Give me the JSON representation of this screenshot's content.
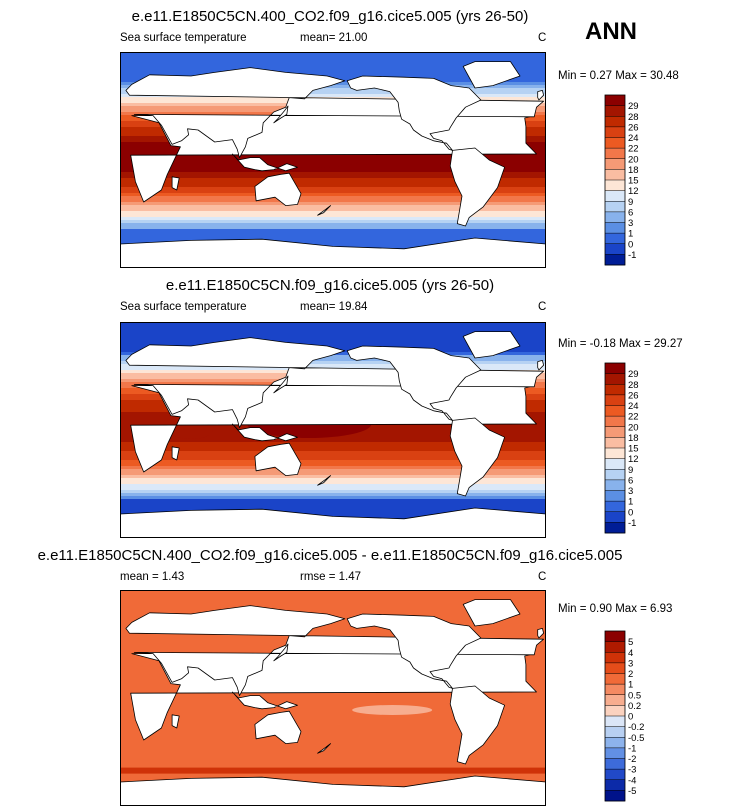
{
  "season_label": "ANN",
  "chart_data": [
    {
      "type": "heatmap",
      "title": "e.e11.E1850C5CN.400_CO2.f09_g16.cice5.005 (yrs 26-50)",
      "left_label": "Sea surface temperature",
      "stat_label": "mean= 21.00",
      "units": "C",
      "minmax_label": "Min =  0.27 Max = 30.48",
      "colorbar_levels": [
        "29",
        "28",
        "26",
        "24",
        "22",
        "20",
        "18",
        "15",
        "12",
        "9",
        "6",
        "3",
        "1",
        "0",
        "-1"
      ],
      "colorbar_colors": [
        "#8b0000",
        "#a31500",
        "#c02a00",
        "#d94112",
        "#ec5a22",
        "#f2774a",
        "#f59a76",
        "#fabda2",
        "#fde6d6",
        "#dae8f8",
        "#b6d2f3",
        "#88b2ec",
        "#5b8fe4",
        "#3366dd",
        "#1a44c8",
        "#001d96"
      ],
      "field": "warm"
    },
    {
      "type": "heatmap",
      "title": "e.e11.E1850C5CN.f09_g16.cice5.005 (yrs 26-50)",
      "left_label": "Sea surface temperature",
      "stat_label": "mean= 19.84",
      "units": "C",
      "minmax_label": "Min = -0.18 Max = 29.27",
      "colorbar_levels": [
        "29",
        "28",
        "26",
        "24",
        "22",
        "20",
        "18",
        "15",
        "12",
        "9",
        "6",
        "3",
        "1",
        "0",
        "-1"
      ],
      "colorbar_colors": [
        "#8b0000",
        "#a31500",
        "#c02a00",
        "#d94112",
        "#ec5a22",
        "#f2774a",
        "#f59a76",
        "#fabda2",
        "#fde6d6",
        "#dae8f8",
        "#b6d2f3",
        "#88b2ec",
        "#5b8fe4",
        "#3366dd",
        "#1a44c8",
        "#001d96"
      ],
      "field": "control"
    },
    {
      "type": "heatmap",
      "title": "e.e11.E1850C5CN.400_CO2.f09_g16.cice5.005 - e.e11.E1850C5CN.f09_g16.cice5.005",
      "left_label": "mean =  1.43",
      "stat_label": "rmse =  1.47",
      "units": "C",
      "minmax_label": "Min =  0.90 Max =  6.93",
      "colorbar_levels": [
        "5",
        "4",
        "3",
        "2",
        "1",
        "0.5",
        "0.2",
        "0",
        "-0.2",
        "-0.5",
        "-1",
        "-2",
        "-3",
        "-4",
        "-5"
      ],
      "colorbar_colors": [
        "#8b0000",
        "#b01a00",
        "#cf3208",
        "#e54d1a",
        "#f06a38",
        "#f48a62",
        "#f7ad8f",
        "#fbd2bf",
        "#dbe6f7",
        "#b8d0f2",
        "#8db3ec",
        "#6290e4",
        "#3d6bda",
        "#2149c8",
        "#0c2aa8",
        "#00128a"
      ],
      "field": "diff"
    }
  ]
}
